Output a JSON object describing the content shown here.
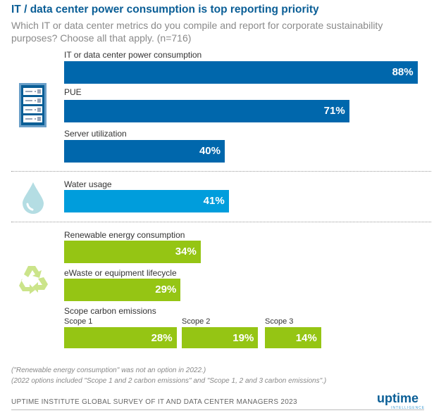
{
  "header": {
    "title": "IT / data center power consumption is top reporting priority",
    "subtitle": "Which IT or data center metrics do you compile and report for corporate sustainability purposes? Choose all that apply. (n=716)"
  },
  "chart_data": {
    "type": "bar",
    "orientation": "horizontal",
    "unit": "%",
    "xlim": [
      0,
      100
    ],
    "grid": false,
    "bars": [
      {
        "label": "IT or data center power consumption",
        "value": 88,
        "display": "88%",
        "group": "it",
        "color": "#0067ac"
      },
      {
        "label": "PUE",
        "value": 71,
        "display": "71%",
        "group": "it",
        "color": "#0067ac"
      },
      {
        "label": "Server utilization",
        "value": 40,
        "display": "40%",
        "group": "it",
        "color": "#0067ac"
      },
      {
        "label": "Water usage",
        "value": 41,
        "display": "41%",
        "group": "water",
        "color": "#009ddc"
      },
      {
        "label": "Renewable energy consumption",
        "value": 34,
        "display": "34%",
        "group": "env",
        "color": "#95c514"
      },
      {
        "label": "eWaste or equipment lifecycle",
        "value": 29,
        "display": "29%",
        "group": "env",
        "color": "#95c514"
      }
    ],
    "scope": {
      "label": "Scope carbon emissions",
      "items": [
        {
          "label": "Scope 1",
          "value": 28,
          "display": "28%"
        },
        {
          "label": "Scope 2",
          "value": 19,
          "display": "19%"
        },
        {
          "label": "Scope 3",
          "value": 14,
          "display": "14%"
        }
      ],
      "color": "#95c514"
    }
  },
  "icons": [
    "server-rack-icon",
    "water-drop-icon",
    "recycle-icon"
  ],
  "notes": [
    "(\"Renewable energy consumption\" was not an option in 2022.)",
    "(2022 options included \"Scope 1 and 2 carbon emissions\" and \"Scope 1, 2 and 3 carbon emissions\".)"
  ],
  "footer": {
    "source": "UPTIME INSTITUTE GLOBAL SURVEY OF IT AND DATA CENTER MANAGERS 2023",
    "logo": "uptime",
    "logo_sub": "INTELLIGENCE"
  }
}
